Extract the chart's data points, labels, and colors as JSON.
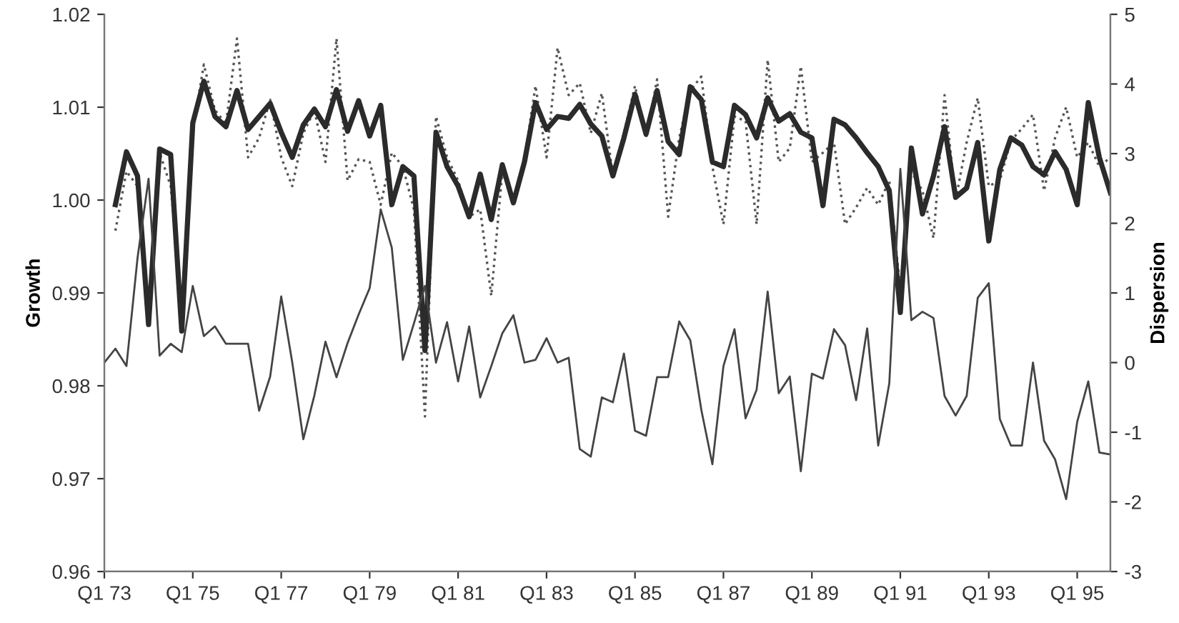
{
  "chart_data": {
    "type": "line",
    "ylabel": "Growth",
    "y2label": "Dispersion",
    "categories": [
      "Q1 73",
      null,
      null,
      null,
      null,
      null,
      null,
      null,
      "Q1 75",
      null,
      null,
      null,
      null,
      null,
      null,
      null,
      "Q1 77",
      null,
      null,
      null,
      null,
      null,
      null,
      null,
      "Q1 79",
      null,
      null,
      null,
      null,
      null,
      null,
      null,
      "Q1 81",
      null,
      null,
      null,
      null,
      null,
      null,
      null,
      "Q1 83",
      null,
      null,
      null,
      null,
      null,
      null,
      null,
      "Q1 85",
      null,
      null,
      null,
      null,
      null,
      null,
      null,
      "Q1 87",
      null,
      null,
      null,
      null,
      null,
      null,
      null,
      "Q1 89",
      null,
      null,
      null,
      null,
      null,
      null,
      null,
      "Q1 91",
      null,
      null,
      null,
      null,
      null,
      null,
      null,
      "Q1 93",
      null,
      null,
      null,
      null,
      null,
      null,
      null,
      "Q1 95",
      null,
      null,
      null
    ],
    "ylim": [
      0.96,
      1.02
    ],
    "yticks": [
      0.96,
      0.97,
      0.98,
      0.99,
      {
        "value": 1.0,
        "label": "1.00"
      },
      1.01,
      1.02
    ],
    "y2lim": [
      -3,
      5
    ],
    "y2ticks": [
      -3,
      -2,
      -1,
      0,
      1,
      2,
      3,
      4,
      5
    ],
    "grid": false,
    "marker": "none",
    "series": [
      {
        "color": "#555555",
        "line_style": "dotted",
        "values": [
          null,
          0.9967,
          1.0031,
          1.0015,
          0.9877,
          1.0051,
          1.0015,
          0.9887,
          1.0074,
          1.0146,
          1.0097,
          1.0082,
          1.0174,
          1.0046,
          1.0067,
          1.0108,
          1.0046,
          1.0015,
          1.0072,
          1.0097,
          1.0041,
          1.0174,
          1.0021,
          1.0044,
          1.0041,
          0.9995,
          1.0051,
          1.0036,
          0.999,
          0.9767,
          1.009,
          1.0046,
          1.0021,
          0.9982,
          0.999,
          0.9897,
          1.0031,
          1.0,
          1.0044,
          1.0123,
          1.0046,
          1.0164,
          1.0113,
          1.0126,
          1.0072,
          1.0115,
          1.0026,
          1.0072,
          1.0123,
          1.0067,
          1.013,
          0.9982,
          1.0067,
          1.0118,
          1.0133,
          1.0036,
          0.9974,
          1.009,
          1.0085,
          0.9974,
          1.0151,
          1.0041,
          1.0056,
          1.0144,
          1.0041,
          1.0051,
          1.0062,
          0.9974,
          0.9992,
          1.0013,
          0.9995,
          1.0021,
          0.9903,
          1.0031,
          1.001,
          0.9959,
          1.0113,
          1.0,
          1.0062,
          1.011,
          1.0015,
          1.0021,
          1.0064,
          1.0077,
          1.0092,
          1.001,
          1.0067,
          1.01,
          1.0046,
          1.0062,
          1.0036,
          1.0046
        ]
      },
      {
        "color": "#2b2b2b",
        "line_style": "solid",
        "values": [
          null,
          0.9995,
          1.0052,
          1.0026,
          0.9866,
          1.0055,
          1.0049,
          0.9859,
          1.0083,
          1.0128,
          1.009,
          1.0079,
          1.0118,
          1.0076,
          1.009,
          1.0104,
          1.0073,
          1.0046,
          1.0081,
          1.0098,
          1.0079,
          1.0119,
          1.0074,
          1.0107,
          1.0069,
          1.0102,
          0.9995,
          1.0036,
          1.0026,
          0.9838,
          1.0073,
          1.0036,
          1.0015,
          0.9982,
          1.0028,
          0.9979,
          1.0038,
          0.9997,
          1.0041,
          1.0105,
          1.0076,
          1.009,
          1.0088,
          1.0103,
          1.0082,
          1.0069,
          1.0026,
          1.0067,
          1.0114,
          1.0071,
          1.0118,
          1.0063,
          1.0049,
          1.0122,
          1.0108,
          1.0041,
          1.0036,
          1.0102,
          1.0092,
          1.0067,
          1.011,
          1.0085,
          1.0093,
          1.0073,
          1.0067,
          0.9994,
          1.0087,
          1.0081,
          1.0067,
          1.0051,
          1.0036,
          1.001,
          0.9879,
          1.0056,
          0.9985,
          1.0026,
          1.0079,
          1.0003,
          1.0013,
          1.0062,
          0.9956,
          1.0033,
          1.0067,
          1.0059,
          1.0036,
          1.0027,
          1.0052,
          1.0033,
          0.9995,
          1.0105,
          1.0046,
          1.0008
        ]
      },
      {
        "color": "#444444",
        "line_style": "solid",
        "axis": "y2",
        "values": [
          0.0,
          0.2,
          -0.05,
          1.5,
          2.64,
          0.1,
          0.27,
          0.15,
          1.1,
          0.38,
          0.52,
          0.27,
          0.27,
          0.27,
          -0.69,
          -0.2,
          0.95,
          0.0,
          -1.1,
          -0.47,
          0.3,
          -0.21,
          0.28,
          0.69,
          1.07,
          2.2,
          1.65,
          0.04,
          0.56,
          1.1,
          0.0,
          0.58,
          -0.27,
          0.52,
          -0.5,
          -0.05,
          0.42,
          0.68,
          0.0,
          0.04,
          0.35,
          0.0,
          0.07,
          -1.24,
          -1.35,
          -0.5,
          -0.57,
          0.13,
          -0.98,
          -1.05,
          -0.21,
          -0.21,
          0.59,
          0.32,
          -0.68,
          -1.46,
          -0.05,
          0.48,
          -0.8,
          -0.39,
          1.02,
          -0.44,
          -0.2,
          -1.56,
          -0.16,
          -0.23,
          0.48,
          0.25,
          -0.54,
          0.49,
          -1.19,
          -0.3,
          2.78,
          0.61,
          0.73,
          0.64,
          -0.48,
          -0.76,
          -0.48,
          0.93,
          1.14,
          -0.81,
          -1.19,
          -1.19,
          0.0,
          -1.12,
          -1.39,
          -1.96,
          -0.85,
          -0.27,
          -1.29,
          -1.32
        ]
      }
    ]
  }
}
